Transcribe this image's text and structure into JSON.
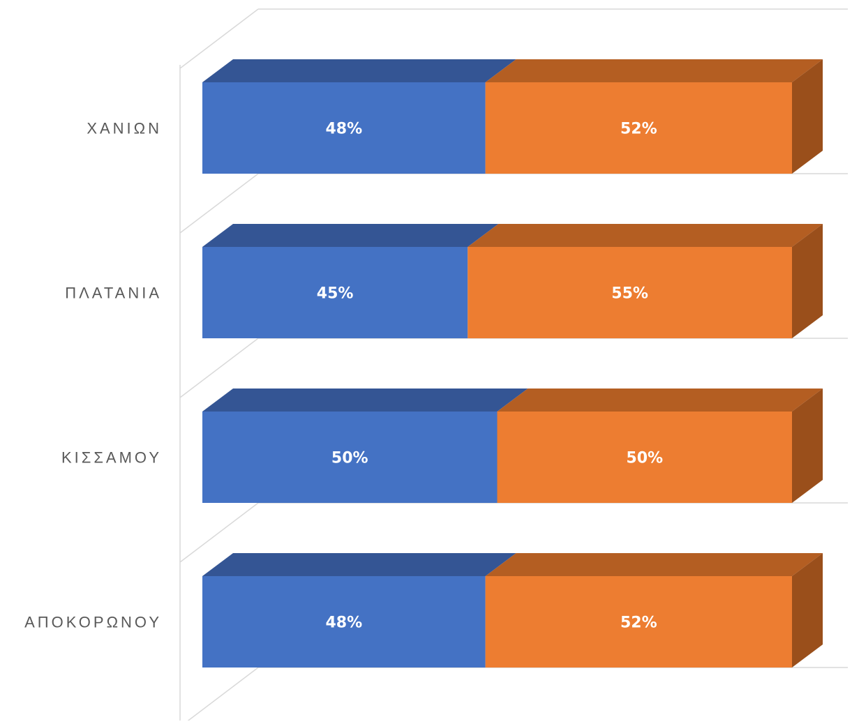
{
  "chart_data": {
    "type": "bar",
    "orientation": "horizontal",
    "stacked": "100%",
    "three_d": true,
    "categories": [
      "ΧΑΝΙΩΝ",
      "ΠΛΑΤΑΝΙΑ",
      "ΚΙΣΣΑΜΟΥ",
      "ΑΠΟΚΟΡΩΝΟΥ"
    ],
    "series": [
      {
        "values": [
          48,
          45,
          50,
          48
        ],
        "labels": [
          "48%",
          "45%",
          "50%",
          "48%"
        ],
        "color": "#4472C4",
        "top_color": "#345594"
      },
      {
        "values": [
          52,
          55,
          50,
          52
        ],
        "labels": [
          "52%",
          "55%",
          "50%",
          "52%"
        ],
        "color": "#ED7D31",
        "top_color": "#B45E22",
        "side_color": "#9A4F1B"
      }
    ],
    "xlim": [
      0,
      100
    ],
    "legend": "none",
    "grid": true
  }
}
